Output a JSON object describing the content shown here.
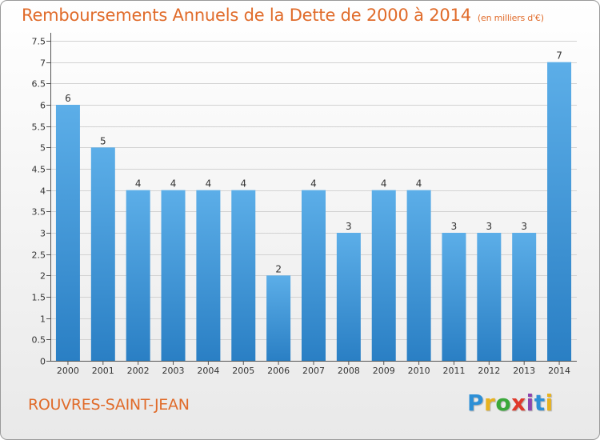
{
  "page": {
    "title": "Remboursements Annuels de la Dette de 2000 à 2014",
    "unit": "(en milliers d'€)",
    "commune": "ROUVRES-SAINT-JEAN",
    "brand_letters": [
      "P",
      "r",
      "o",
      "x",
      "i",
      "t",
      "i"
    ],
    "brand_colors": [
      "#2d8fd6",
      "#e8b21e",
      "#3aa83a",
      "#e0392b",
      "#8e44ad",
      "#2d8fd6",
      "#e8b21e"
    ]
  },
  "colors": {
    "title": "#e06b2a",
    "bar_light": "#5caee8",
    "bar_dark": "#2a7fc4",
    "axis": "#555555",
    "grid": "#d2d2d2",
    "text": "#333333"
  },
  "chart_data": {
    "type": "bar",
    "title": "Remboursements Annuels de la Dette de 2000 à 2014",
    "xlabel": "",
    "ylabel": "",
    "categories": [
      "2000",
      "2001",
      "2002",
      "2003",
      "2004",
      "2005",
      "2006",
      "2007",
      "2008",
      "2009",
      "2010",
      "2011",
      "2012",
      "2013",
      "2014"
    ],
    "values": [
      6,
      5,
      4,
      4,
      4,
      4,
      2,
      4,
      3,
      4,
      4,
      3,
      3,
      3,
      7
    ],
    "data_labels": [
      "6",
      "5",
      "4",
      "4",
      "4",
      "4",
      "2",
      "4",
      "3",
      "4",
      "4",
      "3",
      "3",
      "3",
      "7"
    ],
    "ylim": [
      0,
      7.5
    ],
    "yticks": [
      0,
      0.5,
      1,
      1.5,
      2,
      2.5,
      3,
      3.5,
      4,
      4.5,
      5,
      5.5,
      6,
      6.5,
      7,
      7.5
    ],
    "ytick_labels": [
      "0",
      "0.5",
      "1",
      "1.5",
      "2",
      "2.5",
      "3",
      "3.5",
      "4",
      "4.5",
      "5",
      "5.5",
      "6",
      "6.5",
      "7",
      "7.5"
    ],
    "grid": true,
    "legend": "none"
  }
}
